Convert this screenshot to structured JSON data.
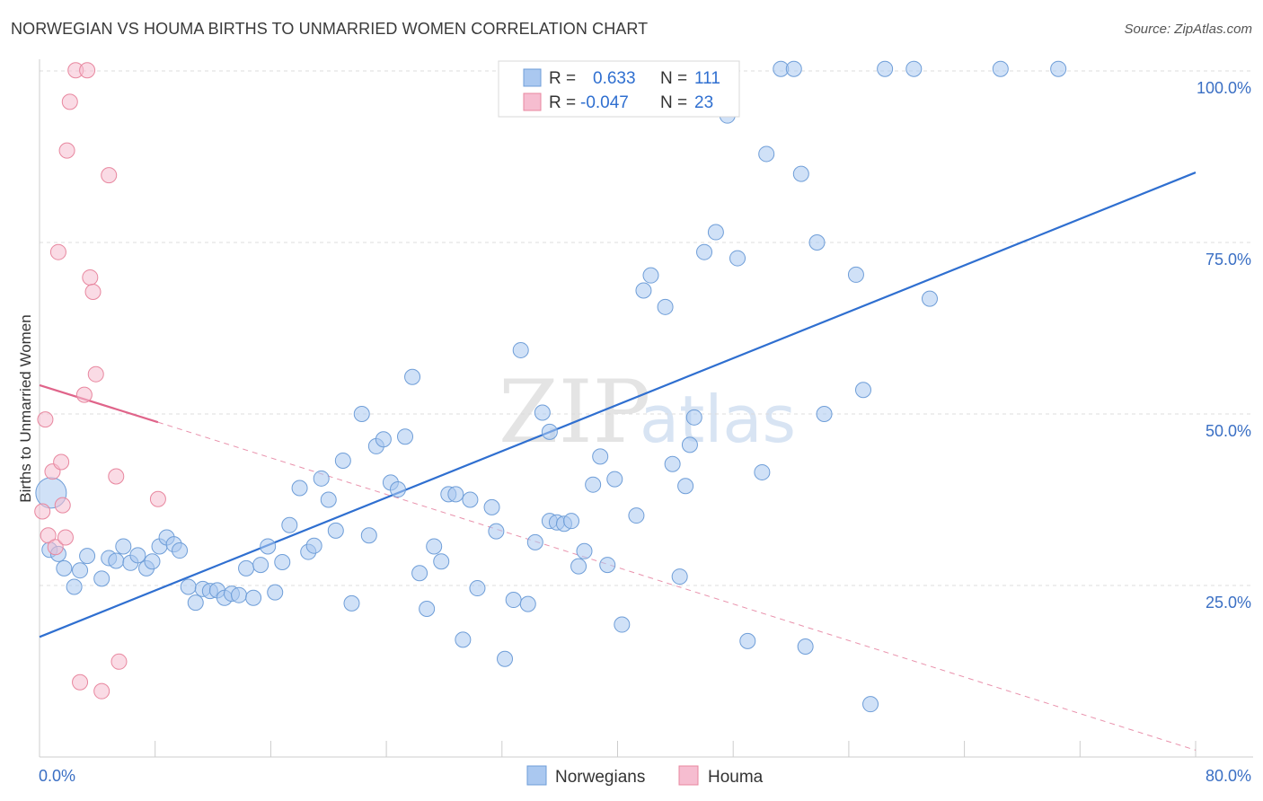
{
  "title": "NORWEGIAN VS HOUMA BIRTHS TO UNMARRIED WOMEN CORRELATION CHART",
  "source": "Source: ZipAtlas.com",
  "watermark": {
    "zip": "ZIP",
    "atlas": "atlas"
  },
  "colors": {
    "blue_fill": "#aac8f0",
    "blue_stroke": "#6f9ed8",
    "blue_line": "#2f6fd0",
    "pink_fill": "#f6bdd0",
    "pink_stroke": "#e8879f",
    "pink_line": "#e0648a",
    "grid": "#dddddd",
    "tick_text": "#3a6fc4"
  },
  "legend": {
    "rows": [
      {
        "r_label": "R =",
        "r_value": "0.633",
        "n_label": "N =",
        "n_value": "111"
      },
      {
        "r_label": "R =",
        "r_value": "-0.047",
        "n_label": "N =",
        "n_value": "23"
      }
    ]
  },
  "chart_data": {
    "type": "scatter",
    "title": "NORWEGIAN VS HOUMA BIRTHS TO UNMARRIED WOMEN CORRELATION CHART",
    "xlabel": "",
    "ylabel": "Births to Unmarried Women",
    "xlim": [
      0,
      80
    ],
    "ylim": [
      0,
      100
    ],
    "x_tick_labels": [
      "0.0%",
      "80.0%"
    ],
    "y_tick_values": [
      25,
      50,
      75,
      100
    ],
    "y_tick_labels": [
      "25.0%",
      "50.0%",
      "75.0%",
      "100.0%"
    ],
    "legend_entries": [
      "Norwegians",
      "Houma"
    ],
    "series": [
      {
        "name": "Norwegians",
        "trend": {
          "x": [
            0,
            80
          ],
          "y": [
            17.5,
            85.2
          ]
        },
        "points": [
          [
            0.8,
            38.5
          ],
          [
            0.7,
            30.2
          ],
          [
            1.3,
            29.6
          ],
          [
            1.7,
            27.5
          ],
          [
            2.4,
            24.8
          ],
          [
            2.8,
            27.2
          ],
          [
            3.3,
            29.3
          ],
          [
            4.3,
            26
          ],
          [
            4.8,
            29
          ],
          [
            5.3,
            28.6
          ],
          [
            5.8,
            30.7
          ],
          [
            6.3,
            28.3
          ],
          [
            6.8,
            29.4
          ],
          [
            7.4,
            27.5
          ],
          [
            7.8,
            28.5
          ],
          [
            8.3,
            30.7
          ],
          [
            8.8,
            32
          ],
          [
            9.3,
            31
          ],
          [
            9.7,
            30.1
          ],
          [
            10.3,
            24.8
          ],
          [
            10.8,
            22.5
          ],
          [
            11.3,
            24.5
          ],
          [
            11.8,
            24.2
          ],
          [
            12.3,
            24.3
          ],
          [
            12.8,
            23.2
          ],
          [
            13.3,
            23.8
          ],
          [
            13.8,
            23.6
          ],
          [
            14.8,
            23.2
          ],
          [
            14.3,
            27.5
          ],
          [
            15.3,
            28
          ],
          [
            15.8,
            30.7
          ],
          [
            16.3,
            24
          ],
          [
            16.8,
            28.4
          ],
          [
            17.3,
            33.8
          ],
          [
            18.0,
            39.2
          ],
          [
            18.6,
            29.9
          ],
          [
            19.0,
            30.8
          ],
          [
            19.5,
            40.6
          ],
          [
            20.0,
            37.5
          ],
          [
            20.5,
            33
          ],
          [
            21.0,
            43.2
          ],
          [
            21.6,
            22.4
          ],
          [
            22.3,
            50
          ],
          [
            22.8,
            32.3
          ],
          [
            23.3,
            45.3
          ],
          [
            23.8,
            46.3
          ],
          [
            24.3,
            40
          ],
          [
            24.8,
            39
          ],
          [
            25.3,
            46.7
          ],
          [
            25.8,
            55.4
          ],
          [
            26.3,
            26.8
          ],
          [
            26.8,
            21.6
          ],
          [
            27.3,
            30.7
          ],
          [
            27.8,
            28.5
          ],
          [
            28.3,
            38.3
          ],
          [
            28.8,
            38.3
          ],
          [
            29.3,
            17.1
          ],
          [
            29.8,
            37.5
          ],
          [
            30.3,
            24.6
          ],
          [
            31.3,
            36.4
          ],
          [
            31.6,
            32.9
          ],
          [
            32.2,
            14.3
          ],
          [
            32.8,
            22.9
          ],
          [
            33.3,
            59.3
          ],
          [
            33.8,
            22.3
          ],
          [
            34.3,
            31.3
          ],
          [
            34.8,
            50.2
          ],
          [
            35.3,
            47.4
          ],
          [
            35.3,
            34.4
          ],
          [
            35.8,
            34.2
          ],
          [
            36.3,
            34
          ],
          [
            36.8,
            34.4
          ],
          [
            37.3,
            27.8
          ],
          [
            37.7,
            30
          ],
          [
            38.3,
            39.7
          ],
          [
            38.8,
            43.8
          ],
          [
            39.3,
            28
          ],
          [
            39.8,
            40.5
          ],
          [
            40.3,
            19.3
          ],
          [
            41.3,
            35.2
          ],
          [
            41.8,
            68
          ],
          [
            42.3,
            70.2
          ],
          [
            43.3,
            65.6
          ],
          [
            43.8,
            42.7
          ],
          [
            44.3,
            26.3
          ],
          [
            44.7,
            39.5
          ],
          [
            45.0,
            45.5
          ],
          [
            45.3,
            49.5
          ],
          [
            46.0,
            73.6
          ],
          [
            46.8,
            76.5
          ],
          [
            47.6,
            93.5
          ],
          [
            48.3,
            72.7
          ],
          [
            49.0,
            16.9
          ],
          [
            50.0,
            41.5
          ],
          [
            50.3,
            87.9
          ],
          [
            51.3,
            100.3
          ],
          [
            52.2,
            100.3
          ],
          [
            52.7,
            85
          ],
          [
            53.0,
            16.1
          ],
          [
            53.8,
            75
          ],
          [
            54.3,
            50
          ],
          [
            56.5,
            70.3
          ],
          [
            57.0,
            53.5
          ],
          [
            57.5,
            7.7
          ],
          [
            58.5,
            100.3
          ],
          [
            60.5,
            100.3
          ],
          [
            61.6,
            66.8
          ],
          [
            66.5,
            100.3
          ],
          [
            70.5,
            100.3
          ]
        ]
      },
      {
        "name": "Houma",
        "trend": {
          "x": [
            0,
            8.2
          ],
          "y": [
            54.2,
            48.8
          ]
        },
        "trend_ext": {
          "x": [
            8.2,
            80
          ],
          "y": [
            48.8,
            1
          ]
        },
        "points": [
          [
            0.2,
            35.8
          ],
          [
            0.4,
            49.2
          ],
          [
            0.6,
            32.3
          ],
          [
            0.9,
            41.6
          ],
          [
            1.1,
            30.6
          ],
          [
            1.3,
            73.6
          ],
          [
            1.5,
            43
          ],
          [
            1.6,
            36.7
          ],
          [
            1.8,
            32
          ],
          [
            1.9,
            88.4
          ],
          [
            2.1,
            95.5
          ],
          [
            2.5,
            100.1
          ],
          [
            2.8,
            10.9
          ],
          [
            3.1,
            52.8
          ],
          [
            3.3,
            100.1
          ],
          [
            3.5,
            69.9
          ],
          [
            3.7,
            67.8
          ],
          [
            3.9,
            55.8
          ],
          [
            4.3,
            9.6
          ],
          [
            4.8,
            84.8
          ],
          [
            5.3,
            40.9
          ],
          [
            5.5,
            13.9
          ],
          [
            8.2,
            37.6
          ]
        ]
      }
    ]
  }
}
